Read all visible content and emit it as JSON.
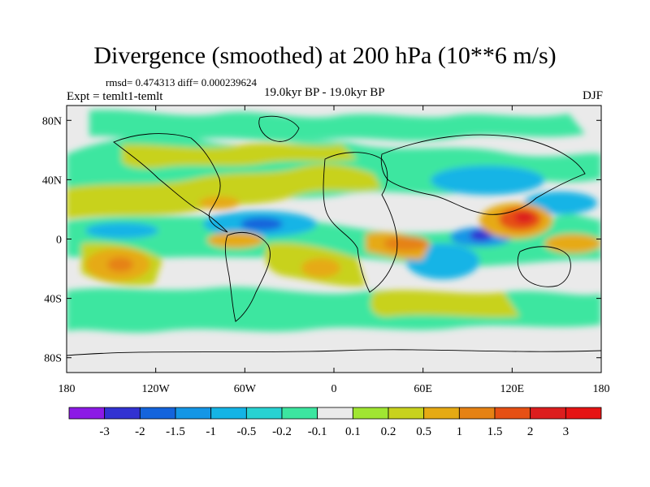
{
  "chart_data": {
    "type": "heatmap",
    "title": "Divergence (smoothed) at 200 hPa (10**6 m/s)",
    "stats": "rmsd= 0.474313 diff= 0.000239624",
    "experiment": "Expt = temlt1-temlt",
    "period": "19.0kyr BP - 19.0kyr BP",
    "season": "DJF",
    "xlabel": "",
    "ylabel": "",
    "xlim": [
      -180,
      180
    ],
    "ylim": [
      -90,
      90
    ],
    "x_ticks": [
      -180,
      -120,
      -60,
      0,
      60,
      120,
      180
    ],
    "x_tick_labels": [
      "180",
      "120W",
      "60W",
      "0",
      "60E",
      "120E",
      "180"
    ],
    "y_ticks": [
      80,
      40,
      0,
      -40,
      -80
    ],
    "y_tick_labels": [
      "80N",
      "40N",
      "0",
      "40S",
      "80S"
    ],
    "colorbar": {
      "levels": [
        "-3",
        "-2",
        "-1.5",
        "-1",
        "-0.5",
        "-0.2",
        "-0.1",
        "0.1",
        "0.2",
        "0.5",
        "1",
        "1.5",
        "2",
        "3"
      ],
      "colors": [
        "#8c1ae6",
        "#3232d2",
        "#1464dc",
        "#1496e6",
        "#14b4e6",
        "#28d2d2",
        "#3ce6a0",
        "#eaeaea",
        "#a0e632",
        "#c8d21e",
        "#e6aa14",
        "#e68214",
        "#e65014",
        "#dc1e1e",
        "#e61414"
      ]
    },
    "anomalies": [
      {
        "lon": 100,
        "lat": 0,
        "sign": "negative",
        "value": -3.0
      },
      {
        "lon": 125,
        "lat": 8,
        "sign": "positive",
        "value": 3.0
      },
      {
        "lon": 140,
        "lat": 20,
        "sign": "positive",
        "value": 1.5
      },
      {
        "lon": 150,
        "lat": -15,
        "sign": "positive",
        "value": 1.5
      },
      {
        "lon": -145,
        "lat": -15,
        "sign": "positive",
        "value": 1.5
      },
      {
        "lon": -110,
        "lat": 5,
        "sign": "negative",
        "value": -1.5
      },
      {
        "lon": -75,
        "lat": 2,
        "sign": "positive",
        "value": 1.5
      },
      {
        "lon": 20,
        "lat": -5,
        "sign": "positive",
        "value": 1.0
      },
      {
        "lon": 55,
        "lat": -5,
        "sign": "negative",
        "value": -1.0
      },
      {
        "lon": -50,
        "lat": 30,
        "sign": "positive",
        "value": 0.5
      },
      {
        "lon": -20,
        "lat": 15,
        "sign": "negative",
        "value": -0.5
      },
      {
        "lon": 90,
        "lat": 35,
        "sign": "negative",
        "value": -0.5
      }
    ]
  }
}
